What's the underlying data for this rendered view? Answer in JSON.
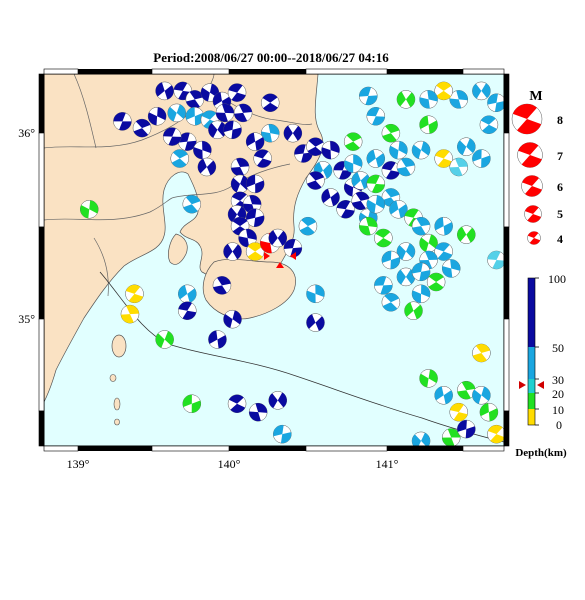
{
  "title": "Period:2008/06/27 00:00--2018/06/27 04:16",
  "colors": {
    "land": "#fae2c3",
    "sea": "#e1ffff",
    "red": "#ff0000",
    "deep": "#0a0aa0",
    "mid": "#1aa6e0",
    "mid_light": "#55d0e8",
    "green": "#22e022",
    "yellow": "#ffdc00"
  },
  "map": {
    "lon_ticks": [
      "139°",
      "140°",
      "141°"
    ],
    "lat_ticks": [
      "36°",
      "35°"
    ]
  },
  "magnitude_legend": {
    "title": "M",
    "items": [
      "8",
      "7",
      "6",
      "5",
      "4"
    ]
  },
  "depth_legend": {
    "labels": [
      "100",
      "50",
      "30",
      "20",
      "10",
      "0"
    ],
    "axis_label": "Depth(km)"
  },
  "events": [
    {
      "lon": 139.32,
      "lat": 36.07,
      "c": "deep"
    },
    {
      "lon": 139.45,
      "lat": 36.03,
      "c": "deep"
    },
    {
      "lon": 139.55,
      "lat": 36.1,
      "c": "deep"
    },
    {
      "lon": 139.6,
      "lat": 36.25,
      "c": "deep"
    },
    {
      "lon": 139.72,
      "lat": 36.25,
      "c": "deep"
    },
    {
      "lon": 139.8,
      "lat": 36.2,
      "c": "deep"
    },
    {
      "lon": 139.9,
      "lat": 36.24,
      "c": "deep"
    },
    {
      "lon": 139.98,
      "lat": 36.19,
      "c": "deep"
    },
    {
      "lon": 140.08,
      "lat": 36.24,
      "c": "deep"
    },
    {
      "lon": 140.12,
      "lat": 36.12,
      "c": "deep"
    },
    {
      "lon": 139.68,
      "lat": 36.12,
      "c": "mid"
    },
    {
      "lon": 139.8,
      "lat": 36.1,
      "c": "mid"
    },
    {
      "lon": 139.9,
      "lat": 36.08,
      "c": "mid"
    },
    {
      "lon": 140.0,
      "lat": 36.12,
      "c": "deep"
    },
    {
      "lon": 139.95,
      "lat": 36.02,
      "c": "deep"
    },
    {
      "lon": 140.05,
      "lat": 36.02,
      "c": "deep"
    },
    {
      "lon": 140.3,
      "lat": 36.18,
      "c": "deep"
    },
    {
      "lon": 140.3,
      "lat": 36.0,
      "c": "mid"
    },
    {
      "lon": 140.45,
      "lat": 36.0,
      "c": "deep"
    },
    {
      "lon": 140.52,
      "lat": 35.88,
      "c": "deep"
    },
    {
      "lon": 140.6,
      "lat": 35.92,
      "c": "deep"
    },
    {
      "lon": 140.7,
      "lat": 35.9,
      "c": "deep"
    },
    {
      "lon": 140.65,
      "lat": 35.78,
      "c": "mid"
    },
    {
      "lon": 140.78,
      "lat": 35.78,
      "c": "deep"
    },
    {
      "lon": 140.6,
      "lat": 35.72,
      "c": "deep"
    },
    {
      "lon": 140.85,
      "lat": 35.68,
      "c": "deep"
    },
    {
      "lon": 140.7,
      "lat": 35.62,
      "c": "deep"
    },
    {
      "lon": 140.8,
      "lat": 35.55,
      "c": "deep"
    },
    {
      "lon": 140.9,
      "lat": 35.6,
      "c": "deep"
    },
    {
      "lon": 140.95,
      "lat": 35.5,
      "c": "mid"
    },
    {
      "lon": 140.2,
      "lat": 35.95,
      "c": "deep"
    },
    {
      "lon": 140.25,
      "lat": 35.85,
      "c": "deep"
    },
    {
      "lon": 140.1,
      "lat": 35.8,
      "c": "deep"
    },
    {
      "lon": 140.1,
      "lat": 35.7,
      "c": "deep"
    },
    {
      "lon": 140.2,
      "lat": 35.7,
      "c": "deep"
    },
    {
      "lon": 140.1,
      "lat": 35.6,
      "c": "deep"
    },
    {
      "lon": 140.18,
      "lat": 35.58,
      "c": "deep"
    },
    {
      "lon": 140.08,
      "lat": 35.52,
      "c": "deep"
    },
    {
      "lon": 140.2,
      "lat": 35.5,
      "c": "deep"
    },
    {
      "lon": 140.1,
      "lat": 35.45,
      "c": "deep"
    },
    {
      "lon": 140.15,
      "lat": 35.38,
      "c": "deep"
    },
    {
      "lon": 140.05,
      "lat": 35.3,
      "c": "deep"
    },
    {
      "lon": 139.75,
      "lat": 35.95,
      "c": "deep"
    },
    {
      "lon": 139.7,
      "lat": 35.85,
      "c": "mid"
    },
    {
      "lon": 139.85,
      "lat": 35.9,
      "c": "deep"
    },
    {
      "lon": 139.88,
      "lat": 35.8,
      "c": "deep"
    },
    {
      "lon": 139.65,
      "lat": 35.98,
      "c": "deep"
    },
    {
      "lon": 139.78,
      "lat": 35.58,
      "c": "mid"
    },
    {
      "lon": 139.1,
      "lat": 35.55,
      "c": "green"
    },
    {
      "lon": 139.75,
      "lat": 35.05,
      "c": "mid"
    },
    {
      "lon": 139.75,
      "lat": 34.95,
      "c": "deep"
    },
    {
      "lon": 139.98,
      "lat": 35.1,
      "c": "deep"
    },
    {
      "lon": 140.05,
      "lat": 34.9,
      "c": "deep"
    },
    {
      "lon": 139.95,
      "lat": 34.78,
      "c": "deep"
    },
    {
      "lon": 139.4,
      "lat": 35.05,
      "c": "yellow"
    },
    {
      "lon": 139.37,
      "lat": 34.93,
      "c": "yellow"
    },
    {
      "lon": 139.6,
      "lat": 34.78,
      "c": "green"
    },
    {
      "lon": 139.78,
      "lat": 34.4,
      "c": "green"
    },
    {
      "lon": 140.08,
      "lat": 34.4,
      "c": "deep"
    },
    {
      "lon": 140.22,
      "lat": 34.35,
      "c": "deep"
    },
    {
      "lon": 140.35,
      "lat": 34.42,
      "c": "deep"
    },
    {
      "lon": 140.38,
      "lat": 34.22,
      "c": "mid"
    },
    {
      "lon": 140.2,
      "lat": 35.3,
      "c": "yellow"
    },
    {
      "lon": 140.3,
      "lat": 35.35,
      "c": "red"
    },
    {
      "lon": 140.35,
      "lat": 35.38,
      "c": "deep"
    },
    {
      "lon": 140.45,
      "lat": 35.32,
      "c": "deep"
    },
    {
      "lon": 140.55,
      "lat": 35.45,
      "c": "mid"
    },
    {
      "lon": 140.6,
      "lat": 35.05,
      "c": "mid"
    },
    {
      "lon": 140.6,
      "lat": 34.88,
      "c": "deep"
    },
    {
      "lon": 141.0,
      "lat": 36.1,
      "c": "mid"
    },
    {
      "lon": 141.1,
      "lat": 36.0,
      "c": "green"
    },
    {
      "lon": 141.15,
      "lat": 35.9,
      "c": "mid"
    },
    {
      "lon": 141.0,
      "lat": 35.85,
      "c": "mid"
    },
    {
      "lon": 141.1,
      "lat": 35.78,
      "c": "deep"
    },
    {
      "lon": 141.2,
      "lat": 35.8,
      "c": "mid"
    },
    {
      "lon": 141.3,
      "lat": 35.9,
      "c": "mid"
    },
    {
      "lon": 141.35,
      "lat": 36.05,
      "c": "green"
    },
    {
      "lon": 141.45,
      "lat": 35.85,
      "c": "yellow"
    },
    {
      "lon": 141.55,
      "lat": 35.8,
      "c": "mid_light"
    },
    {
      "lon": 141.6,
      "lat": 35.92,
      "c": "mid"
    },
    {
      "lon": 141.7,
      "lat": 35.85,
      "c": "mid"
    },
    {
      "lon": 141.75,
      "lat": 36.05,
      "c": "mid"
    },
    {
      "lon": 141.55,
      "lat": 36.2,
      "c": "mid"
    },
    {
      "lon": 141.7,
      "lat": 36.25,
      "c": "mid"
    },
    {
      "lon": 141.8,
      "lat": 36.18,
      "c": "mid"
    },
    {
      "lon": 141.45,
      "lat": 36.25,
      "c": "yellow"
    },
    {
      "lon": 141.35,
      "lat": 36.2,
      "c": "mid"
    },
    {
      "lon": 141.2,
      "lat": 36.2,
      "c": "green"
    },
    {
      "lon": 140.95,
      "lat": 36.22,
      "c": "mid"
    },
    {
      "lon": 140.85,
      "lat": 35.95,
      "c": "green"
    },
    {
      "lon": 140.85,
      "lat": 35.82,
      "c": "mid"
    },
    {
      "lon": 140.9,
      "lat": 35.72,
      "c": "mid"
    },
    {
      "lon": 141.0,
      "lat": 35.7,
      "c": "green"
    },
    {
      "lon": 141.1,
      "lat": 35.62,
      "c": "mid"
    },
    {
      "lon": 141.0,
      "lat": 35.58,
      "c": "mid"
    },
    {
      "lon": 141.15,
      "lat": 35.55,
      "c": "mid"
    },
    {
      "lon": 141.25,
      "lat": 35.5,
      "c": "green"
    },
    {
      "lon": 141.3,
      "lat": 35.45,
      "c": "mid"
    },
    {
      "lon": 141.35,
      "lat": 35.35,
      "c": "green"
    },
    {
      "lon": 141.45,
      "lat": 35.45,
      "c": "mid"
    },
    {
      "lon": 141.45,
      "lat": 35.3,
      "c": "mid"
    },
    {
      "lon": 141.35,
      "lat": 35.25,
      "c": "mid"
    },
    {
      "lon": 141.2,
      "lat": 35.3,
      "c": "mid"
    },
    {
      "lon": 141.1,
      "lat": 35.25,
      "c": "mid"
    },
    {
      "lon": 141.05,
      "lat": 35.38,
      "c": "green"
    },
    {
      "lon": 140.95,
      "lat": 35.45,
      "c": "green"
    },
    {
      "lon": 141.2,
      "lat": 35.15,
      "c": "mid"
    },
    {
      "lon": 141.3,
      "lat": 35.18,
      "c": "mid"
    },
    {
      "lon": 141.4,
      "lat": 35.12,
      "c": "green"
    },
    {
      "lon": 141.5,
      "lat": 35.2,
      "c": "mid"
    },
    {
      "lon": 141.6,
      "lat": 35.4,
      "c": "green"
    },
    {
      "lon": 141.05,
      "lat": 35.1,
      "c": "mid"
    },
    {
      "lon": 141.1,
      "lat": 35.0,
      "c": "mid"
    },
    {
      "lon": 141.3,
      "lat": 35.05,
      "c": "mid"
    },
    {
      "lon": 141.25,
      "lat": 34.95,
      "c": "green"
    },
    {
      "lon": 141.8,
      "lat": 35.25,
      "c": "mid_light"
    },
    {
      "lon": 141.7,
      "lat": 34.7,
      "c": "yellow"
    },
    {
      "lon": 141.35,
      "lat": 34.55,
      "c": "green"
    },
    {
      "lon": 141.45,
      "lat": 34.45,
      "c": "mid"
    },
    {
      "lon": 141.55,
      "lat": 34.35,
      "c": "yellow"
    },
    {
      "lon": 141.6,
      "lat": 34.48,
      "c": "green"
    },
    {
      "lon": 141.7,
      "lat": 34.45,
      "c": "mid"
    },
    {
      "lon": 141.75,
      "lat": 34.35,
      "c": "green"
    },
    {
      "lon": 141.8,
      "lat": 34.22,
      "c": "yellow"
    },
    {
      "lon": 141.5,
      "lat": 34.2,
      "c": "green"
    },
    {
      "lon": 141.3,
      "lat": 34.18,
      "c": "mid"
    },
    {
      "lon": 141.6,
      "lat": 34.25,
      "c": "deep"
    }
  ]
}
